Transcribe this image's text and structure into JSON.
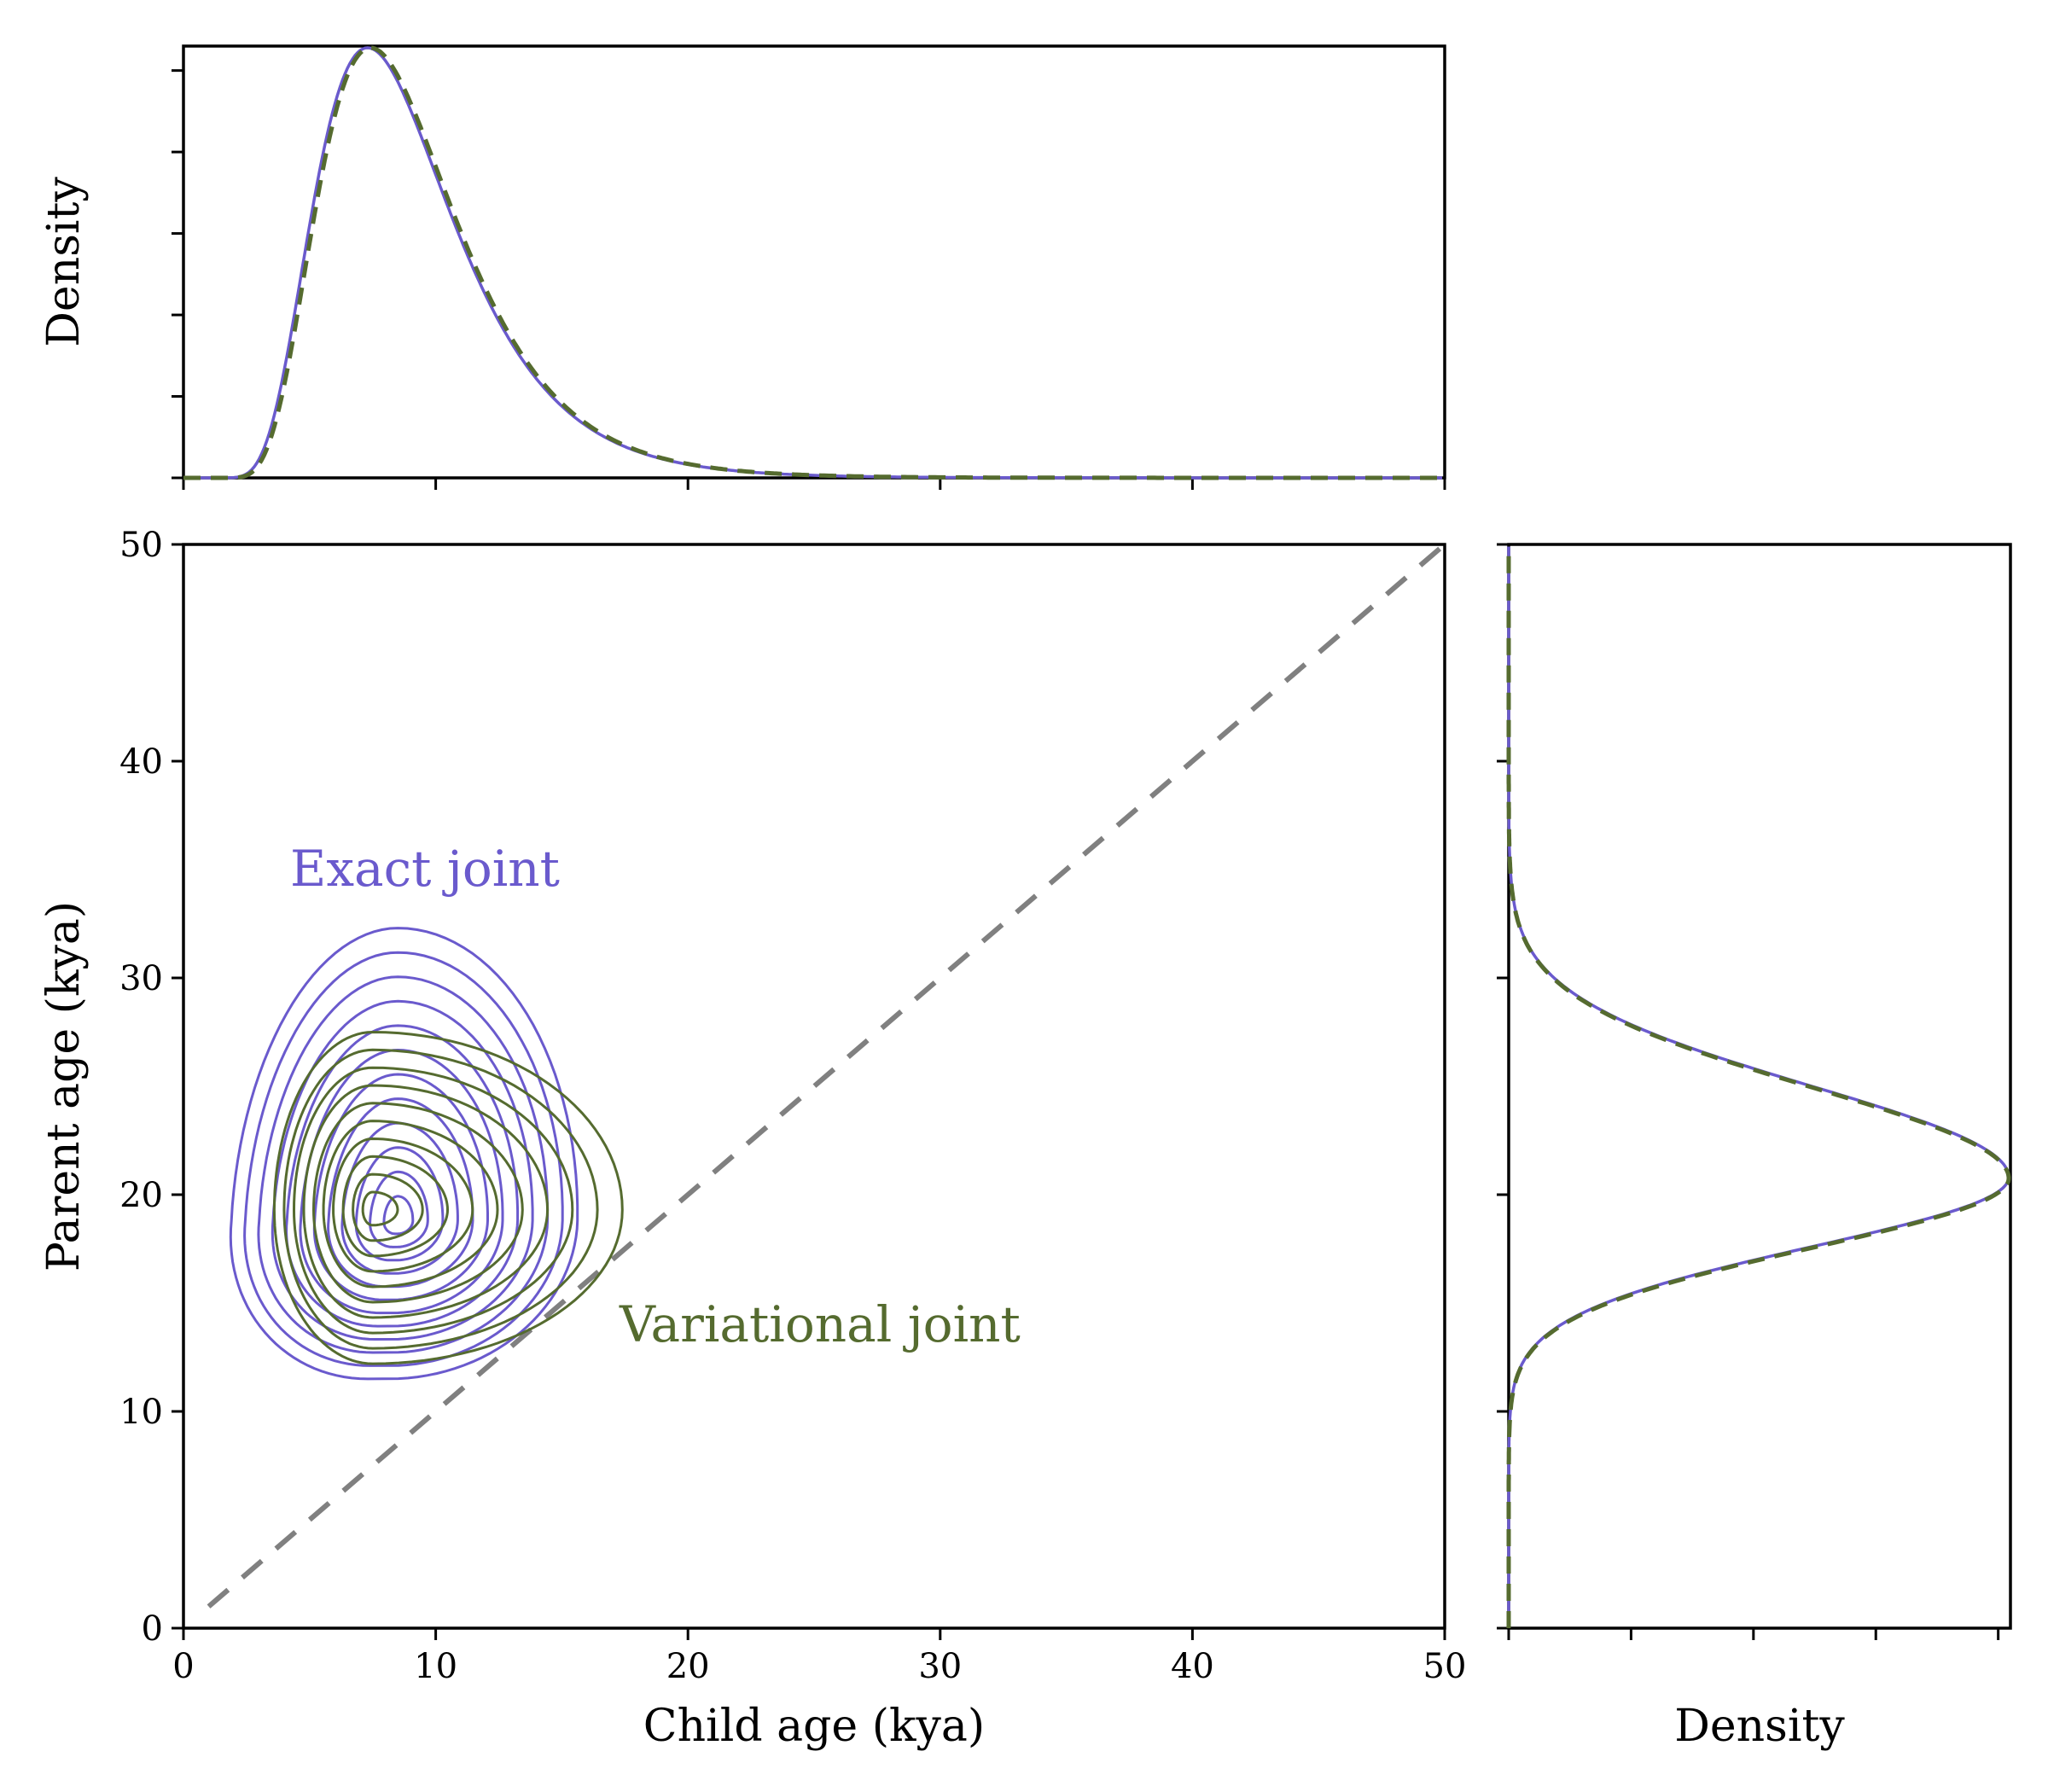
{
  "chart_data": [
    {
      "id": "joint",
      "type": "contour",
      "xlabel": "Child age (kya)",
      "ylabel": "Parent age (kya)",
      "xlim": [
        0,
        50
      ],
      "ylim": [
        0,
        50
      ],
      "xticks": [
        "0",
        "10",
        "20",
        "30",
        "40",
        "50"
      ],
      "yticks": [
        "0",
        "10",
        "20",
        "30",
        "40",
        "50"
      ],
      "reference_line": {
        "style": "dashed",
        "color": "#808080",
        "from": [
          1,
          1
        ],
        "to": [
          50,
          50
        ]
      },
      "series": [
        {
          "name": "Exact joint",
          "color": "#6a5acd",
          "center": [
            8.5,
            18.8
          ],
          "levels": 12,
          "outer_extent": {
            "x": [
              2.5,
              15.8
            ],
            "y": [
              11.5,
              32.3
            ]
          }
        },
        {
          "name": "Variational joint",
          "color": "#556b2f",
          "center": [
            7.5,
            19.3
          ],
          "levels": 10,
          "outer_extent": {
            "x": [
              3.6,
              17.4
            ],
            "y": [
              12.2,
              27.5
            ]
          }
        }
      ],
      "annotations": [
        {
          "text": "Exact joint",
          "color": "#6a5acd"
        },
        {
          "text": "Variational joint",
          "color": "#556b2f"
        }
      ]
    },
    {
      "id": "child-marginal",
      "type": "line",
      "ylabel": "Density",
      "xlim": [
        0,
        50
      ],
      "mode": "x",
      "xpeak": 7.3,
      "min_x": 0.5,
      "series": [
        {
          "name": "Exact",
          "color": "#6a5acd",
          "style": "solid"
        },
        {
          "name": "Variational",
          "color": "#556b2f",
          "style": "dashed"
        }
      ]
    },
    {
      "id": "parent-marginal",
      "type": "line",
      "xlabel": "Density",
      "ylim": [
        0,
        50
      ],
      "mode": "y",
      "mean": 20.8,
      "sd": 4.0,
      "series": [
        {
          "name": "Exact",
          "color": "#6a5acd",
          "style": "solid"
        },
        {
          "name": "Variational",
          "color": "#556b2f",
          "style": "dashed"
        }
      ]
    }
  ]
}
